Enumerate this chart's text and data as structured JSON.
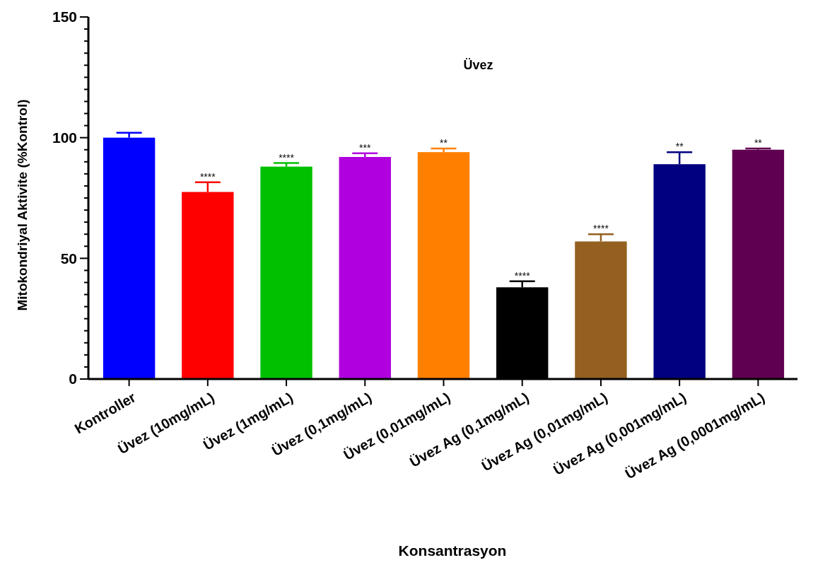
{
  "chart_data": {
    "type": "bar",
    "title": "Üvez",
    "xlabel": "Konsantrasyon",
    "ylabel": "Mitokondriyal Aktivite (%Kontrol)",
    "categories": [
      "Kontroller",
      "Üvez (10mg/mL)",
      "Üvez (1mg/mL)",
      "Üvez (0,1mg/mL)",
      "Üvez (0,01mg/mL)",
      "Üvez Ag (0,1mg/mL)",
      "Üvez Ag (0,01mg/mL)",
      "Üvez Ag (0,001mg/mL)",
      "Üvez Ag (0,0001mg/mL)"
    ],
    "values": [
      100,
      77.5,
      88,
      92,
      94,
      38,
      57,
      89,
      95
    ],
    "errors": [
      2,
      4,
      1.5,
      1.5,
      1.5,
      2.5,
      3,
      5,
      0.5
    ],
    "colors": [
      "#0000ff",
      "#ff0000",
      "#00c000",
      "#b000e0",
      "#ff8000",
      "#000000",
      "#936020",
      "#000080",
      "#600050"
    ],
    "ylim": [
      0,
      150
    ],
    "yticks": [
      0,
      {
        "value": 5,
        "label": null
      },
      {
        "value": 10,
        "label": null
      },
      {
        "value": 15,
        "label": null
      },
      {
        "value": 20,
        "label": null
      },
      {
        "value": 25,
        "label": null
      },
      {
        "value": 30,
        "label": null
      },
      {
        "value": 35,
        "label": null
      },
      {
        "value": 40,
        "label": null
      },
      {
        "value": 45,
        "label": null
      },
      50,
      {
        "value": 55,
        "label": null
      },
      {
        "value": 60,
        "label": null
      },
      {
        "value": 65,
        "label": null
      },
      {
        "value": 70,
        "label": null
      },
      {
        "value": 75,
        "label": null
      },
      {
        "value": 80,
        "label": null
      },
      {
        "value": 85,
        "label": null
      },
      {
        "value": 90,
        "label": null
      },
      {
        "value": 95,
        "label": null
      },
      100,
      {
        "value": 105,
        "label": null
      },
      {
        "value": 110,
        "label": null
      },
      {
        "value": 115,
        "label": null
      },
      {
        "value": 120,
        "label": null
      },
      {
        "value": 125,
        "label": null
      },
      {
        "value": 130,
        "label": null
      },
      {
        "value": 135,
        "label": null
      },
      {
        "value": 140,
        "label": null
      },
      {
        "value": 145,
        "label": null
      },
      150
    ],
    "annotations": [
      {
        "text": "****",
        "x": "Üvez (10mg/mL)",
        "y": 81.5
      },
      {
        "text": "****",
        "x": "Üvez (1mg/mL)",
        "y": 89.5
      },
      {
        "text": "***",
        "x": "Üvez (0,1mg/mL)",
        "y": 93.5
      },
      {
        "text": "**",
        "x": "Üvez (0,01mg/mL)",
        "y": 95.5
      },
      {
        "text": "****",
        "x": "Üvez Ag (0,1mg/mL)",
        "y": 40.5
      },
      {
        "text": "****",
        "x": "Üvez Ag (0,01mg/mL)",
        "y": 60
      },
      {
        "text": "**",
        "x": "Üvez Ag (0,001mg/mL)",
        "y": 94
      },
      {
        "text": "**",
        "x": "Üvez Ag (0,0001mg/mL)",
        "y": 95.5
      }
    ],
    "grid": false
  }
}
